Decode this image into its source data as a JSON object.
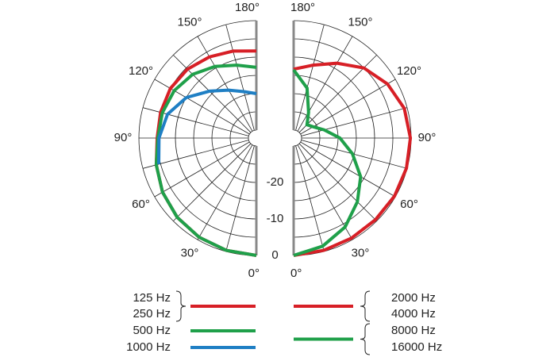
{
  "chart_data": [
    {
      "type": "polar",
      "theta": [
        0,
        15,
        30,
        45,
        60,
        75,
        90,
        105,
        120,
        135,
        150,
        165,
        180
      ],
      "rlim": [
        -30,
        0
      ],
      "rings": [
        -25,
        -20,
        -15,
        -10,
        -5,
        0
      ],
      "spokes": [
        0,
        15,
        30,
        45,
        60,
        75,
        90,
        105,
        120,
        135,
        150,
        165,
        180
      ],
      "aticks": [
        {
          "value": 0,
          "label": "0°"
        },
        {
          "value": 30,
          "label": "30°"
        },
        {
          "value": 60,
          "label": "60°"
        },
        {
          "value": 90,
          "label": "90°"
        },
        {
          "value": 120,
          "label": "120°"
        },
        {
          "value": 150,
          "label": "150°"
        },
        {
          "value": 180,
          "label": "180°"
        }
      ],
      "series": [
        {
          "labels": [
            "125 Hz",
            "250 Hz"
          ],
          "color": "#d71f26",
          "values": [
            0,
            -0.3,
            -0.8,
            -1.5,
            -2.5,
            -3.8,
            -5,
            -5,
            -5,
            -5.5,
            -6.5,
            -7.5,
            -8.3
          ]
        },
        {
          "labels": [
            "500 Hz"
          ],
          "color": "#1fa04a",
          "values": [
            0,
            -0.3,
            -0.8,
            -1.5,
            -2.5,
            -3.8,
            -5.2,
            -5.5,
            -6.2,
            -7.5,
            -9.5,
            -11.5,
            -12.8
          ]
        },
        {
          "labels": [
            "1000 Hz"
          ],
          "color": "#1f7fc4",
          "values": [
            null,
            null,
            null,
            null,
            null,
            -4.5,
            -5.5,
            -7,
            -10,
            -14,
            -17,
            -19,
            -20
          ]
        }
      ]
    },
    {
      "type": "polar",
      "theta": [
        0,
        15,
        30,
        45,
        60,
        75,
        90,
        105,
        120,
        135,
        150,
        165,
        180
      ],
      "rlim": [
        -30,
        0
      ],
      "rings": [
        -25,
        -20,
        -15,
        -10,
        -5,
        0
      ],
      "spokes": [
        0,
        15,
        30,
        45,
        60,
        75,
        90,
        105,
        120,
        135,
        150,
        165,
        180
      ],
      "aticks": [
        {
          "value": 0,
          "label": "0°"
        },
        {
          "value": 30,
          "label": "30°"
        },
        {
          "value": 60,
          "label": "60°"
        },
        {
          "value": 90,
          "label": "90°"
        },
        {
          "value": 120,
          "label": "120°"
        },
        {
          "value": 150,
          "label": "150°"
        },
        {
          "value": 180,
          "label": "180°"
        }
      ],
      "rticks": [
        0,
        -10,
        -20
      ],
      "series": [
        {
          "labels": [
            "2000 Hz",
            "4000 Hz"
          ],
          "color": "#d71f26",
          "values": [
            0,
            -0.3,
            -0.5,
            -0.5,
            -0.3,
            -0.2,
            -0.2,
            -0.8,
            -2.5,
            -5,
            -8.5,
            -11.5,
            -13.3
          ]
        },
        {
          "labels": [
            "8000 Hz",
            "16000 Hz"
          ],
          "color": "#1fa04a",
          "values": [
            0,
            -1.5,
            -4,
            -7.5,
            -11,
            -15.5,
            -19.5,
            -23.5,
            -26,
            -27,
            -24,
            -18,
            -13.5
          ]
        }
      ]
    }
  ]
}
